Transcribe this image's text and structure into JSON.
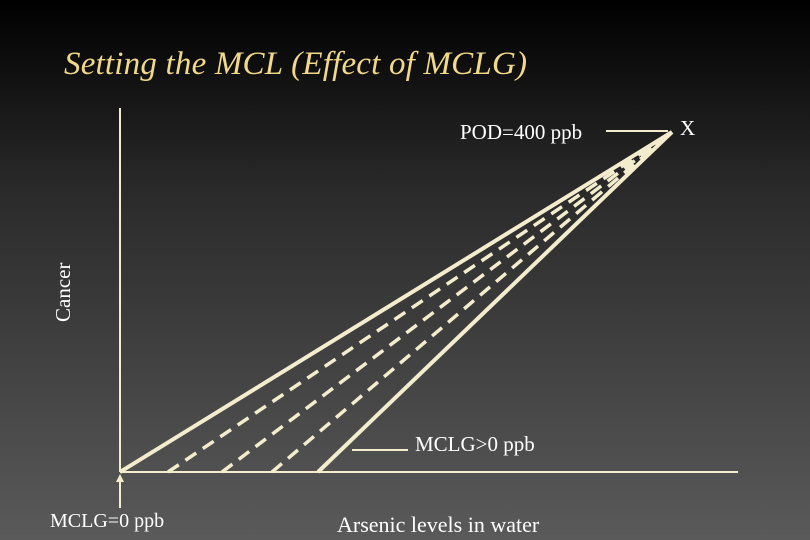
{
  "slide": {
    "title": "Setting the MCL (Effect of MCLG)"
  },
  "axes": {
    "y_label": "Cancer",
    "x_label": "Arsenic levels in water"
  },
  "annotations": {
    "pod": "POD=400 ppb",
    "point_marker": "X",
    "mclg_positive": "MCLG>0 ppb",
    "mclg_zero": "MCLG=0 ppb"
  },
  "colors": {
    "title": "#f2d98a",
    "lines": "#f3eccd",
    "text": "#ffffff"
  }
}
